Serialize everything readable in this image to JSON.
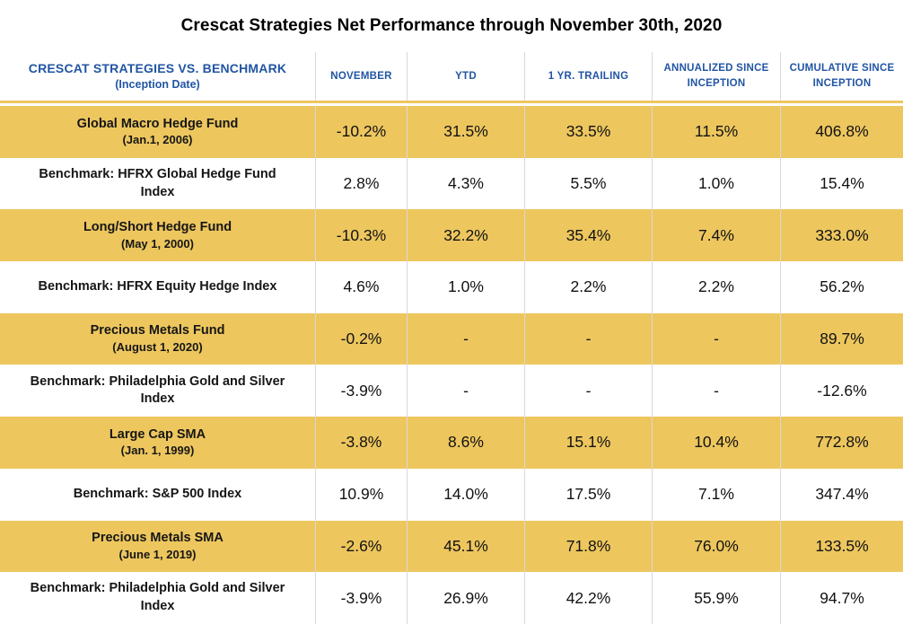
{
  "title": "Crescat Strategies Net Performance through November 30th, 2020",
  "colors": {
    "row_highlight_gold": "#edc65e",
    "header_blue": "#2155a3",
    "grid_line": "#d8d8d8",
    "text_black": "#121212"
  },
  "chart_data": {
    "type": "table",
    "title": "Crescat Strategies Net Performance through November 30th, 2020",
    "row_header_title": "CRESCAT STRATEGIES VS. BENCHMARK",
    "row_header_subtitle": "(Inception Date)",
    "columns": [
      "NOVEMBER",
      "YTD",
      "1 YR. TRAILING",
      "ANNUALIZED SINCE INCEPTION",
      "CUMULATIVE SINCE INCEPTION"
    ],
    "rows": [
      {
        "kind": "strategy",
        "name": "Global Macro Hedge Fund",
        "inception": "(Jan.1, 2006)",
        "values": [
          "-10.2%",
          "31.5%",
          "33.5%",
          "11.5%",
          "406.8%"
        ]
      },
      {
        "kind": "benchmark",
        "name": "Benchmark: HFRX Global Hedge Fund Index",
        "inception": "",
        "values": [
          "2.8%",
          "4.3%",
          "5.5%",
          "1.0%",
          "15.4%"
        ]
      },
      {
        "kind": "strategy",
        "name": "Long/Short Hedge Fund",
        "inception": "(May 1, 2000)",
        "values": [
          "-10.3%",
          "32.2%",
          "35.4%",
          "7.4%",
          "333.0%"
        ]
      },
      {
        "kind": "benchmark",
        "name": "Benchmark: HFRX Equity Hedge Index",
        "inception": "",
        "values": [
          "4.6%",
          "1.0%",
          "2.2%",
          "2.2%",
          "56.2%"
        ]
      },
      {
        "kind": "strategy",
        "name": "Precious Metals Fund",
        "inception": "(August 1, 2020)",
        "values": [
          "-0.2%",
          "-",
          "-",
          "-",
          "89.7%"
        ]
      },
      {
        "kind": "benchmark",
        "name": "Benchmark: Philadelphia Gold and Silver Index",
        "inception": "",
        "values": [
          "-3.9%",
          "-",
          "-",
          "-",
          "-12.6%"
        ]
      },
      {
        "kind": "strategy",
        "name": "Large Cap SMA",
        "inception": "(Jan. 1, 1999)",
        "values": [
          "-3.8%",
          "8.6%",
          "15.1%",
          "10.4%",
          "772.8%"
        ]
      },
      {
        "kind": "benchmark",
        "name": "Benchmark: S&P 500 Index",
        "inception": "",
        "values": [
          "10.9%",
          "14.0%",
          "17.5%",
          "7.1%",
          "347.4%"
        ]
      },
      {
        "kind": "strategy",
        "name": "Precious Metals SMA",
        "inception": "(June 1, 2019)",
        "values": [
          "-2.6%",
          "45.1%",
          "71.8%",
          "76.0%",
          "133.5%"
        ]
      },
      {
        "kind": "benchmark",
        "name": "Benchmark: Philadelphia Gold and Silver Index",
        "inception": "",
        "values": [
          "-3.9%",
          "26.9%",
          "42.2%",
          "55.9%",
          "94.7%"
        ]
      }
    ]
  }
}
